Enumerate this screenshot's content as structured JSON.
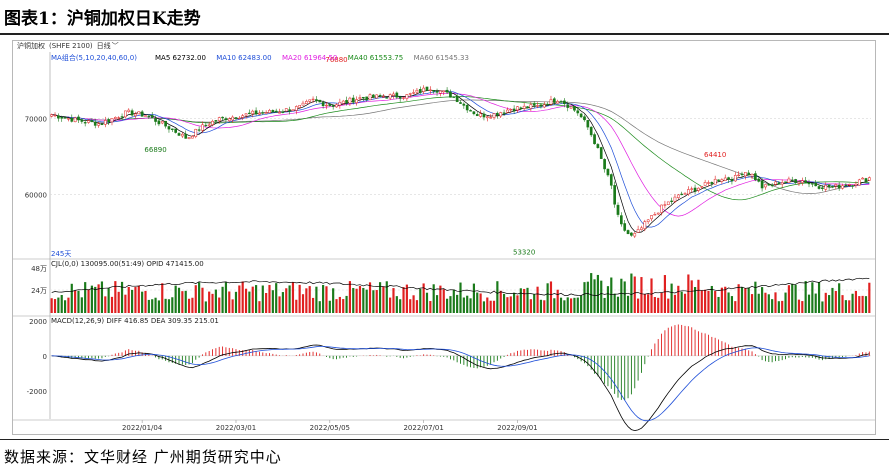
{
  "figure": {
    "title": "图表1：沪铜加权日K走势",
    "source": "数据来源：文华财经  广州期货研究中心"
  },
  "toolbar": {
    "instrument": "沪铜加权",
    "code": "(SHFE 2100)",
    "period": "日线"
  },
  "colors": {
    "up": "#e02020",
    "down": "#1a7a1a",
    "ma5": "#000000",
    "ma10": "#1f4fd8",
    "ma20": "#e01ee0",
    "ma40": "#1a8a1a",
    "ma60": "#777777",
    "background": "#ffffff"
  },
  "chart_data": [
    {
      "type": "candlestick",
      "indicator_label": "MA组合(5,10,20,40,60,0)",
      "ma": [
        {
          "name": "MA5",
          "value": "62732.00"
        },
        {
          "name": "MA10",
          "value": "62483.00"
        },
        {
          "name": "MA20",
          "value": "61964.50"
        },
        {
          "name": "MA40",
          "value": "61553.75"
        },
        {
          "name": "MA60",
          "value": "61545.33"
        }
      ],
      "y_ticks": [
        "70000",
        "60000"
      ],
      "ylim": [
        51800,
        78600
      ],
      "x_tick_labels": [
        "2022/01/04",
        "2022/03/01",
        "2022/05/05",
        "2022/07/01",
        "2022/09/01"
      ],
      "annotations": [
        {
          "label": "76880",
          "value": 76880
        },
        {
          "label": "66890",
          "value": 66890
        },
        {
          "label": "53320",
          "value": 53320
        },
        {
          "label": "64410",
          "value": 64410
        }
      ],
      "bars_label": "245天",
      "path_points": [
        [
          0,
          70500
        ],
        [
          10,
          69800
        ],
        [
          20,
          69300
        ],
        [
          32,
          70800
        ],
        [
          40,
          70400
        ],
        [
          50,
          68700
        ],
        [
          57,
          67400
        ],
        [
          63,
          68800
        ],
        [
          70,
          69900
        ],
        [
          78,
          70300
        ],
        [
          86,
          70700
        ],
        [
          95,
          70900
        ],
        [
          105,
          71500
        ],
        [
          110,
          72400
        ],
        [
          118,
          71700
        ],
        [
          130,
          72700
        ],
        [
          140,
          72900
        ],
        [
          150,
          73000
        ],
        [
          160,
          74100
        ],
        [
          170,
          72800
        ],
        [
          174,
          71700
        ],
        [
          180,
          70400
        ],
        [
          186,
          70500
        ],
        [
          194,
          71300
        ],
        [
          205,
          71600
        ],
        [
          214,
          72600
        ],
        [
          222,
          70800
        ],
        [
          226,
          69000
        ],
        [
          230,
          66300
        ],
        [
          233,
          63600
        ],
        [
          236,
          61300
        ],
        [
          238,
          58000
        ],
        [
          240,
          56000
        ],
        [
          243,
          54900
        ],
        [
          245,
          54400
        ],
        [
          248,
          55300
        ],
        [
          252,
          56700
        ],
        [
          258,
          58500
        ],
        [
          264,
          59700
        ],
        [
          270,
          60600
        ],
        [
          276,
          61300
        ],
        [
          282,
          62200
        ],
        [
          288,
          62100
        ],
        [
          292,
          63100
        ],
        [
          296,
          62500
        ],
        [
          300,
          60900
        ],
        [
          308,
          61700
        ],
        [
          316,
          61900
        ],
        [
          324,
          61100
        ],
        [
          330,
          61000
        ],
        [
          338,
          61500
        ],
        [
          345,
          62200
        ]
      ],
      "n_bars": 245
    },
    {
      "type": "bar",
      "indicator_label": "CJL(0,0)",
      "values_text": "130095.00(51:49)",
      "opi_label": "OPID",
      "opi_value": "471415.00",
      "y_ticks": [
        "48万",
        "24万"
      ]
    },
    {
      "type": "line",
      "indicator_label": "MACD(12,26,9)",
      "diff": {
        "name": "DIFF",
        "value": "416.85"
      },
      "dea": {
        "name": "DEA",
        "value": "309.35"
      },
      "macd_value": "215.01",
      "y_ticks": [
        "2000",
        "0",
        "-2000"
      ],
      "ylim": [
        -3600,
        2100
      ]
    }
  ]
}
